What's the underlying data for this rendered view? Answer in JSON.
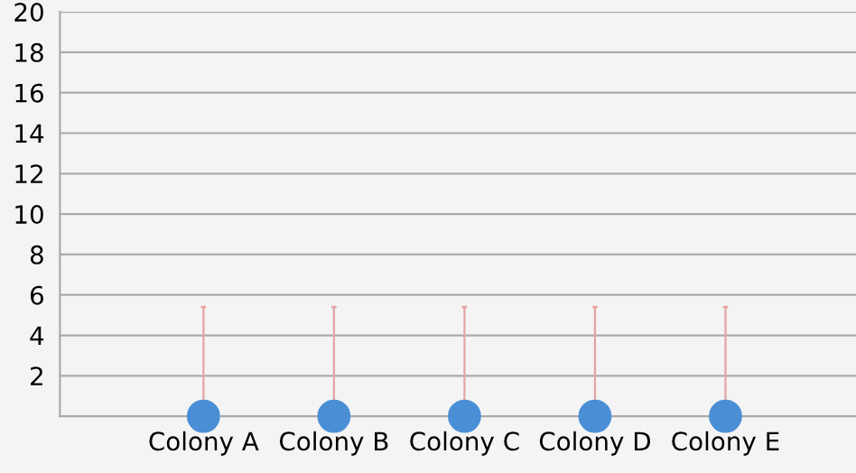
{
  "chart_data": {
    "type": "scatter",
    "categories": [
      "Colony A",
      "Colony B",
      "Colony C",
      "Colony D",
      "Colony E"
    ],
    "series": [
      {
        "color": "#4a8fd6",
        "values": [
          0,
          0,
          0,
          0,
          0
        ],
        "errors": [
          [
            0,
            5.4
          ],
          [
            0,
            5.4
          ],
          [
            0,
            5.4
          ],
          [
            0,
            5.4
          ],
          [
            0,
            5.4
          ]
        ]
      }
    ],
    "ylim": [
      0,
      20
    ],
    "yticks": [
      2,
      4,
      6,
      8,
      10,
      12,
      14,
      16,
      18,
      20
    ],
    "grid": "y",
    "marker": "circle"
  }
}
